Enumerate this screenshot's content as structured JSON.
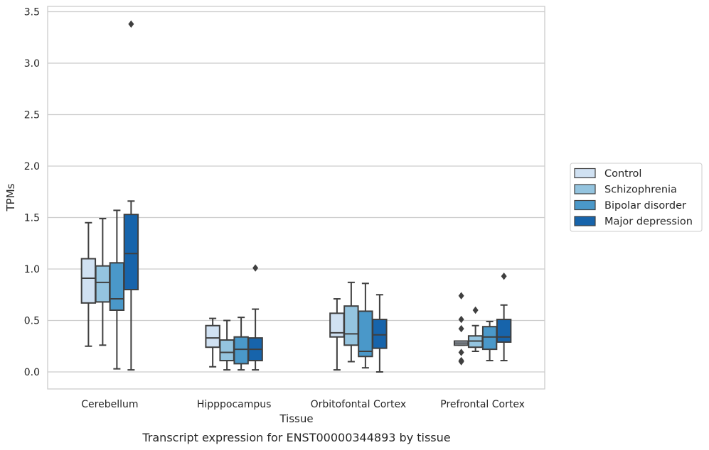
{
  "chart_data": {
    "type": "box",
    "title": "",
    "caption": "Transcript expression for ENST00000344893 by tissue",
    "xlabel": "Tissue",
    "ylabel": "TPMs",
    "ylim": [
      -0.17,
      3.56
    ],
    "yticks": [
      0.0,
      0.5,
      1.0,
      1.5,
      2.0,
      2.5,
      3.0,
      3.5
    ],
    "ytick_labels": [
      "0.0",
      "0.5",
      "1.0",
      "1.5",
      "2.0",
      "2.5",
      "3.0",
      "3.5"
    ],
    "grid": "horizontal",
    "legend_position": "right",
    "categories": [
      "Cerebellum",
      "Hipppocampus",
      "Orbitofontal Cortex",
      "Prefrontal Cortex"
    ],
    "series": [
      {
        "name": "Control",
        "color": "#d0e1f2",
        "boxes": [
          {
            "whisker_low": 0.25,
            "q1": 0.67,
            "median": 0.91,
            "q3": 1.1,
            "whisker_high": 1.45,
            "outliers": []
          },
          {
            "whisker_low": 0.05,
            "q1": 0.24,
            "median": 0.33,
            "q3": 0.45,
            "whisker_high": 0.52,
            "outliers": []
          },
          {
            "whisker_low": 0.02,
            "q1": 0.34,
            "median": 0.38,
            "q3": 0.57,
            "whisker_high": 0.71,
            "outliers": []
          },
          {
            "whisker_low": 0.26,
            "q1": 0.26,
            "median": 0.28,
            "q3": 0.3,
            "whisker_high": 0.3,
            "outliers": [
              0.74,
              0.51,
              0.42,
              0.19,
              0.11,
              0.1
            ]
          }
        ]
      },
      {
        "name": "Schizophrenia",
        "color": "#94c4df",
        "boxes": [
          {
            "whisker_low": 0.26,
            "q1": 0.68,
            "median": 0.87,
            "q3": 1.03,
            "whisker_high": 1.49,
            "outliers": []
          },
          {
            "whisker_low": 0.02,
            "q1": 0.11,
            "median": 0.19,
            "q3": 0.31,
            "whisker_high": 0.5,
            "outliers": []
          },
          {
            "whisker_low": 0.1,
            "q1": 0.26,
            "median": 0.37,
            "q3": 0.64,
            "whisker_high": 0.87,
            "outliers": []
          },
          {
            "whisker_low": 0.2,
            "q1": 0.24,
            "median": 0.3,
            "q3": 0.35,
            "whisker_high": 0.45,
            "outliers": [
              0.6
            ]
          }
        ]
      },
      {
        "name": "Bipolar disorder",
        "color": "#4a98c9",
        "boxes": [
          {
            "whisker_low": 0.03,
            "q1": 0.6,
            "median": 0.71,
            "q3": 1.06,
            "whisker_high": 1.57,
            "outliers": []
          },
          {
            "whisker_low": 0.02,
            "q1": 0.08,
            "median": 0.22,
            "q3": 0.34,
            "whisker_high": 0.53,
            "outliers": []
          },
          {
            "whisker_low": 0.04,
            "q1": 0.15,
            "median": 0.2,
            "q3": 0.59,
            "whisker_high": 0.86,
            "outliers": []
          },
          {
            "whisker_low": 0.11,
            "q1": 0.22,
            "median": 0.34,
            "q3": 0.44,
            "whisker_high": 0.49,
            "outliers": []
          }
        ]
      },
      {
        "name": "Major depression",
        "color": "#1764ab",
        "boxes": [
          {
            "whisker_low": 0.02,
            "q1": 0.8,
            "median": 1.15,
            "q3": 1.53,
            "whisker_high": 1.66,
            "outliers": [
              3.38
            ]
          },
          {
            "whisker_low": 0.02,
            "q1": 0.11,
            "median": 0.22,
            "q3": 0.33,
            "whisker_high": 0.61,
            "outliers": [
              1.01
            ]
          },
          {
            "whisker_low": 0.0,
            "q1": 0.23,
            "median": 0.36,
            "q3": 0.51,
            "whisker_high": 0.75,
            "outliers": []
          },
          {
            "whisker_low": 0.11,
            "q1": 0.29,
            "median": 0.34,
            "q3": 0.51,
            "whisker_high": 0.65,
            "outliers": [
              0.93
            ]
          }
        ]
      }
    ]
  }
}
